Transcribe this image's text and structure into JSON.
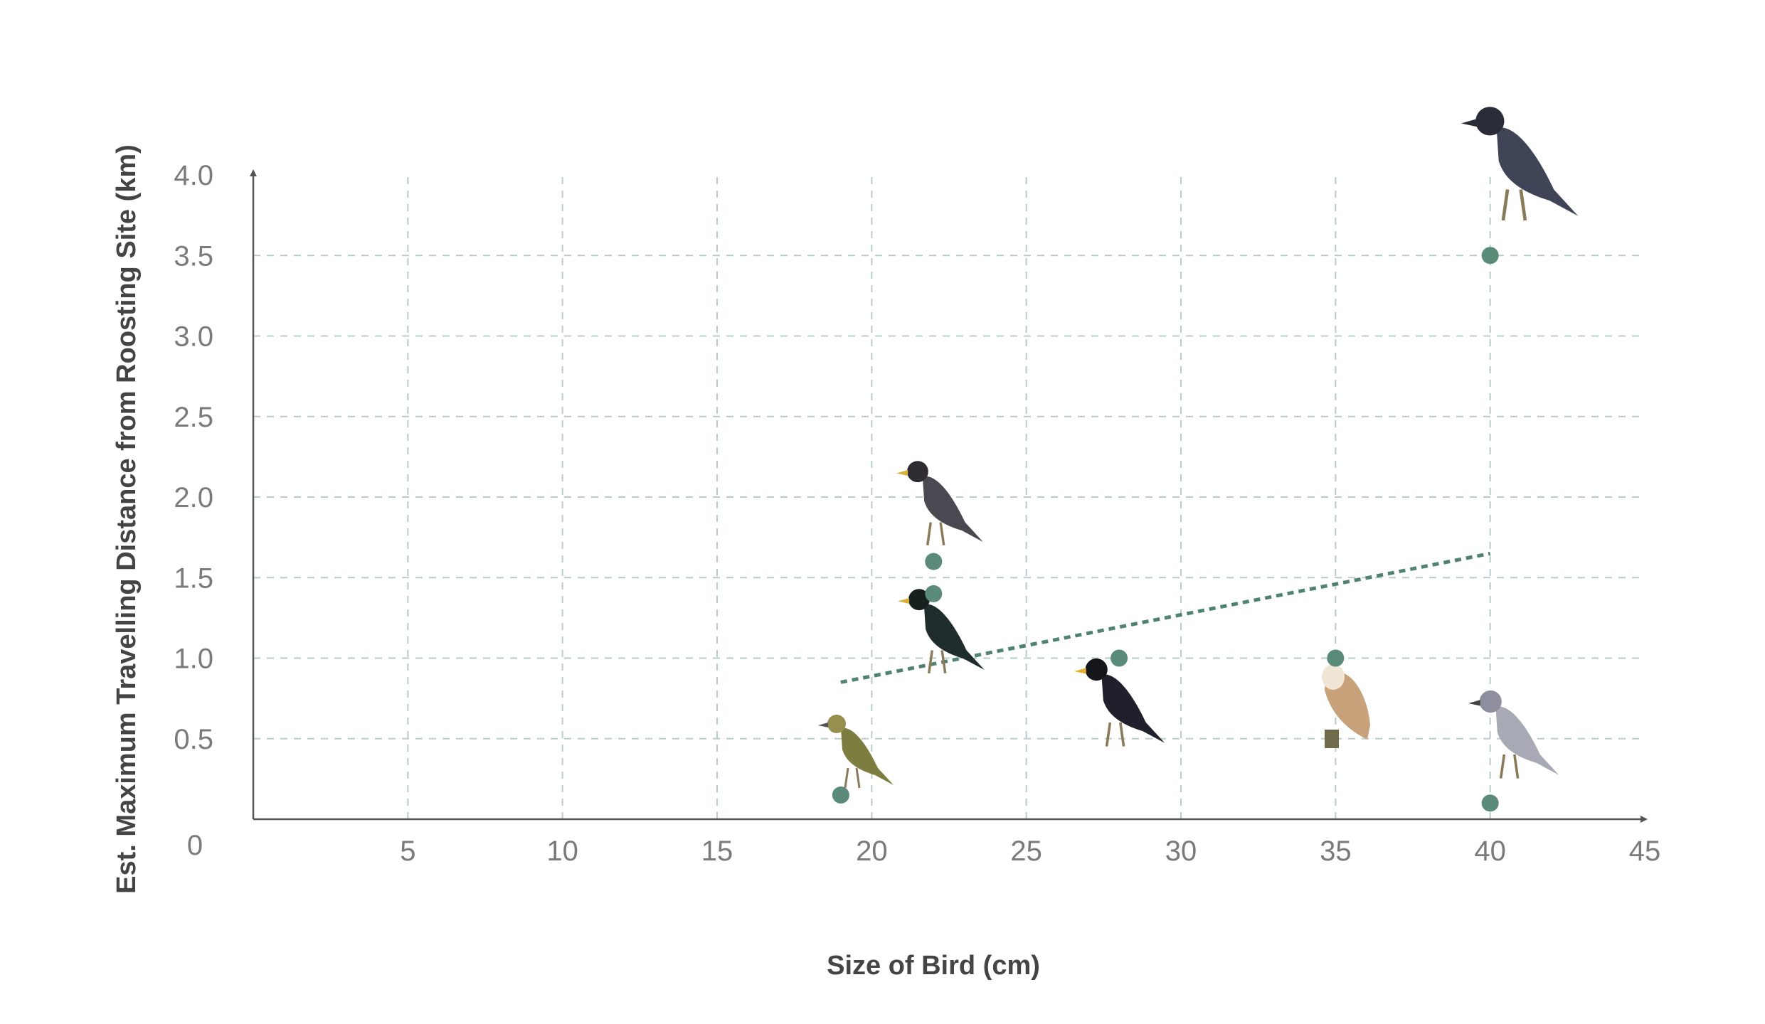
{
  "chart_data": {
    "type": "scatter",
    "xlabel": "Size of Bird (cm)",
    "ylabel": "Est. Maximum Travelling Distance from Roosting Site (km)",
    "xlim": [
      0,
      45
    ],
    "ylim": [
      0,
      4.0
    ],
    "x_ticks": [
      5,
      10,
      15,
      20,
      25,
      30,
      35,
      40,
      45
    ],
    "y_ticks": [
      0.5,
      1.0,
      1.5,
      2.0,
      2.5,
      3.0,
      3.5,
      4.0
    ],
    "y_tick_labels": [
      "0.5",
      "1.0",
      "1.5",
      "2.0",
      "2.5",
      "3.0",
      "3.5",
      "4.0"
    ],
    "origin_label": "0",
    "grid": true,
    "points": [
      {
        "x": 19,
        "y": 0.15,
        "bird": "bulbul"
      },
      {
        "x": 22,
        "y": 1.6,
        "bird": "myna"
      },
      {
        "x": 22,
        "y": 1.4,
        "bird": "starling"
      },
      {
        "x": 28,
        "y": 1.0,
        "bird": "hill myna"
      },
      {
        "x": 35,
        "y": 1.0,
        "bird": "barn owl"
      },
      {
        "x": 40,
        "y": 3.5,
        "bird": "crow"
      },
      {
        "x": 40,
        "y": 0.1,
        "bird": "pigeon"
      }
    ],
    "trendline": {
      "x": [
        19,
        40
      ],
      "y": [
        0.85,
        1.65
      ]
    },
    "colors": {
      "point": "#5a8a78",
      "trend": "#4f8270",
      "grid": "#b9cccb",
      "axis": "#555555",
      "tick": "#7a7a7a"
    }
  }
}
